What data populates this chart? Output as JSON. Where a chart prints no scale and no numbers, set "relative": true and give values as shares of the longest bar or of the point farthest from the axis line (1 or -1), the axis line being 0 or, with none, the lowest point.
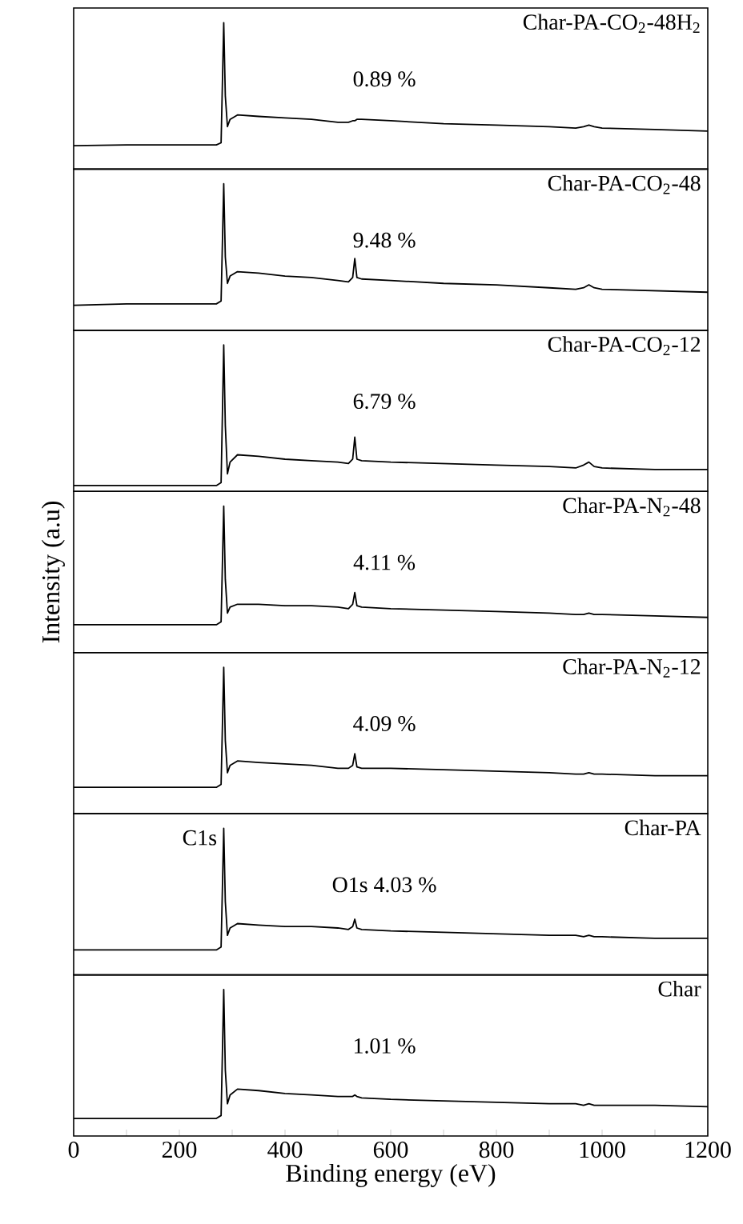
{
  "chart_data": [
    {
      "type": "line",
      "relative": true,
      "xlim": [
        0,
        1200
      ],
      "tick_labels": false,
      "legend": false,
      "marker": "none",
      "line_style": "solid",
      "annotations": [
        "0.89 %"
      ],
      "x": [
        0,
        100,
        200,
        270,
        279,
        284,
        287,
        291,
        296,
        310,
        350,
        400,
        450,
        500,
        520,
        528,
        532,
        536,
        545,
        600,
        700,
        800,
        900,
        950,
        965,
        975,
        985,
        1000,
        1100,
        1200
      ],
      "series": [
        {
          "name": "Char-PA-CO$_{2}$-48H$_{2}$",
          "color": "#000000",
          "values": [
            0.16,
            0.165,
            0.165,
            0.165,
            0.18,
            1,
            0.5,
            0.29,
            0.34,
            0.37,
            0.36,
            0.35,
            0.34,
            0.32,
            0.32,
            0.33,
            0.33,
            0.34,
            0.34,
            0.33,
            0.31,
            0.3,
            0.29,
            0.28,
            0.29,
            0.3,
            0.29,
            0.28,
            0.27,
            0.26
          ]
        }
      ]
    },
    {
      "type": "line",
      "relative": true,
      "xlim": [
        0,
        1200
      ],
      "tick_labels": false,
      "legend": false,
      "marker": "none",
      "line_style": "solid",
      "annotations": [
        "9.48 %"
      ],
      "x": [
        0,
        100,
        200,
        270,
        279,
        284,
        287,
        291,
        296,
        310,
        350,
        400,
        450,
        500,
        520,
        528,
        532,
        536,
        545,
        600,
        700,
        800,
        900,
        950,
        965,
        975,
        985,
        1000,
        1100,
        1200
      ],
      "series": [
        {
          "name": "Char-PA-CO$_{2}$-48",
          "color": "#000000",
          "values": [
            0.17,
            0.18,
            0.18,
            0.18,
            0.2,
            1,
            0.5,
            0.32,
            0.37,
            0.4,
            0.39,
            0.37,
            0.36,
            0.34,
            0.33,
            0.36,
            0.49,
            0.36,
            0.35,
            0.34,
            0.32,
            0.31,
            0.29,
            0.28,
            0.29,
            0.31,
            0.29,
            0.28,
            0.27,
            0.26
          ]
        }
      ]
    },
    {
      "type": "line",
      "relative": true,
      "xlim": [
        0,
        1200
      ],
      "tick_labels": false,
      "legend": false,
      "marker": "none",
      "line_style": "solid",
      "annotations": [
        "6.79 %"
      ],
      "x": [
        0,
        100,
        200,
        270,
        279,
        284,
        287,
        291,
        296,
        310,
        350,
        400,
        450,
        500,
        520,
        528,
        532,
        536,
        545,
        600,
        700,
        800,
        900,
        950,
        965,
        975,
        985,
        1000,
        1100,
        1200
      ],
      "series": [
        {
          "name": "Char-PA-CO$_{2}$-12",
          "color": "#000000",
          "values": [
            0.04,
            0.04,
            0.04,
            0.04,
            0.06,
            1,
            0.45,
            0.12,
            0.2,
            0.25,
            0.24,
            0.22,
            0.21,
            0.2,
            0.19,
            0.22,
            0.37,
            0.22,
            0.21,
            0.2,
            0.19,
            0.18,
            0.17,
            0.16,
            0.18,
            0.2,
            0.17,
            0.16,
            0.15,
            0.15
          ]
        }
      ]
    },
    {
      "type": "line",
      "relative": true,
      "xlim": [
        0,
        1200
      ],
      "tick_labels": false,
      "legend": false,
      "marker": "none",
      "line_style": "solid",
      "ylabel": "Intensity (a.u)",
      "annotations": [
        "4.11 %"
      ],
      "x": [
        0,
        100,
        200,
        270,
        279,
        284,
        287,
        291,
        296,
        310,
        350,
        400,
        450,
        500,
        520,
        528,
        532,
        536,
        545,
        600,
        700,
        800,
        900,
        950,
        965,
        975,
        985,
        1000,
        1100,
        1200
      ],
      "series": [
        {
          "name": "Char-PA-N$_{2}$-48",
          "color": "#000000",
          "values": [
            0.19,
            0.19,
            0.19,
            0.19,
            0.21,
            1,
            0.5,
            0.27,
            0.31,
            0.33,
            0.33,
            0.32,
            0.32,
            0.31,
            0.3,
            0.33,
            0.41,
            0.32,
            0.31,
            0.3,
            0.29,
            0.28,
            0.27,
            0.26,
            0.26,
            0.27,
            0.26,
            0.26,
            0.25,
            0.24
          ]
        }
      ]
    },
    {
      "type": "line",
      "relative": true,
      "xlim": [
        0,
        1200
      ],
      "tick_labels": false,
      "legend": false,
      "marker": "none",
      "line_style": "solid",
      "annotations": [
        "4.09 %"
      ],
      "x": [
        0,
        100,
        200,
        270,
        279,
        284,
        287,
        291,
        296,
        310,
        350,
        400,
        450,
        500,
        520,
        528,
        532,
        536,
        545,
        600,
        700,
        800,
        900,
        950,
        965,
        975,
        985,
        1000,
        1100,
        1200
      ],
      "series": [
        {
          "name": "Char-PA-N$_{2}$-12",
          "color": "#000000",
          "values": [
            0.18,
            0.18,
            0.18,
            0.18,
            0.2,
            1,
            0.5,
            0.28,
            0.33,
            0.36,
            0.35,
            0.34,
            0.33,
            0.31,
            0.31,
            0.33,
            0.41,
            0.32,
            0.31,
            0.31,
            0.3,
            0.29,
            0.28,
            0.27,
            0.27,
            0.28,
            0.27,
            0.27,
            0.26,
            0.26
          ]
        }
      ]
    },
    {
      "type": "line",
      "relative": true,
      "xlim": [
        0,
        1200
      ],
      "tick_labels": false,
      "legend": false,
      "marker": "none",
      "line_style": "solid",
      "annotations": [
        {
          "text": "C1s",
          "x": 284,
          "y": 1
        },
        "O1s 4.03 %"
      ],
      "x": [
        0,
        100,
        200,
        270,
        279,
        284,
        287,
        291,
        296,
        310,
        350,
        400,
        450,
        500,
        520,
        528,
        532,
        536,
        545,
        600,
        700,
        800,
        900,
        950,
        965,
        975,
        985,
        1000,
        1100,
        1200
      ],
      "series": [
        {
          "name": "Char-PA",
          "color": "#000000",
          "values": [
            0.17,
            0.17,
            0.17,
            0.17,
            0.19,
            1,
            0.5,
            0.27,
            0.32,
            0.35,
            0.34,
            0.33,
            0.33,
            0.32,
            0.31,
            0.33,
            0.38,
            0.32,
            0.31,
            0.3,
            0.29,
            0.28,
            0.27,
            0.27,
            0.26,
            0.27,
            0.26,
            0.26,
            0.25,
            0.25
          ]
        }
      ]
    },
    {
      "type": "line",
      "relative": true,
      "xlim": [
        0,
        1200
      ],
      "xticks": [
        0,
        {
          "value": 100,
          "label": null
        },
        200,
        {
          "value": 300,
          "label": null
        },
        400,
        {
          "value": 500,
          "label": null
        },
        600,
        {
          "value": 700,
          "label": null
        },
        800,
        {
          "value": 900,
          "label": null
        },
        1000,
        {
          "value": 1100,
          "label": null
        },
        1200
      ],
      "xlabel": "Binding energy (eV)",
      "legend": false,
      "marker": "none",
      "line_style": "solid",
      "annotations": [
        "1.01 %"
      ],
      "x": [
        0,
        100,
        200,
        270,
        279,
        284,
        287,
        291,
        296,
        310,
        350,
        400,
        450,
        500,
        520,
        528,
        532,
        536,
        545,
        600,
        700,
        800,
        900,
        950,
        965,
        975,
        985,
        1000,
        1100,
        1200
      ],
      "series": [
        {
          "name": "Char",
          "color": "#000000",
          "values": [
            0.12,
            0.12,
            0.12,
            0.12,
            0.14,
            1,
            0.45,
            0.22,
            0.28,
            0.32,
            0.31,
            0.29,
            0.28,
            0.27,
            0.27,
            0.27,
            0.28,
            0.27,
            0.26,
            0.25,
            0.24,
            0.23,
            0.22,
            0.22,
            0.21,
            0.22,
            0.21,
            0.21,
            0.21,
            0.2
          ]
        }
      ]
    }
  ]
}
